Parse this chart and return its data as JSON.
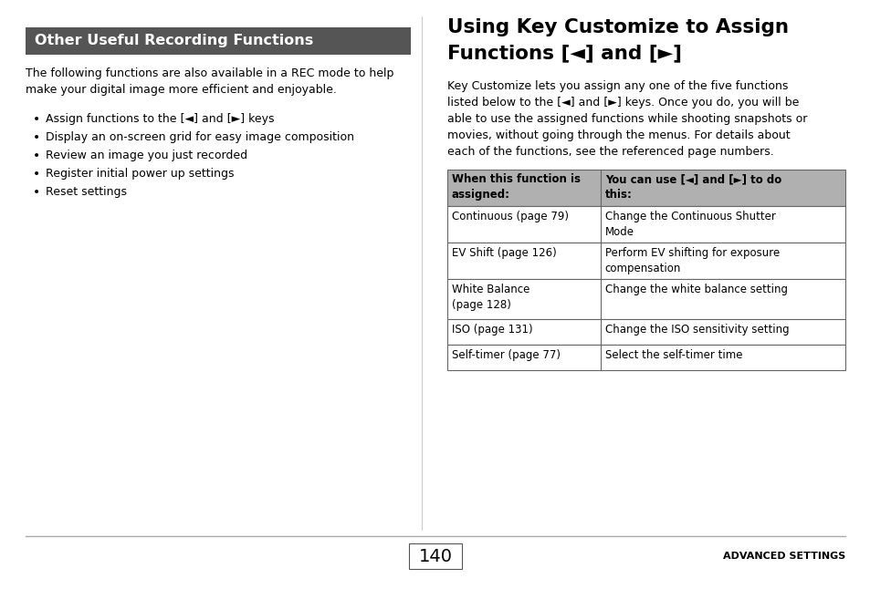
{
  "bg_color": "#ffffff",
  "left_section": {
    "header_bg": "#555555",
    "header_text": "Other Useful Recording Functions",
    "header_text_color": "#ffffff",
    "body_text": "The following functions are also available in a REC mode to help\nmake your digital image more efficient and enjoyable.",
    "bullets": [
      "Assign functions to the [◄] and [►] keys",
      "Display an on-screen grid for easy image composition",
      "Review an image you just recorded",
      "Register initial power up settings",
      "Reset settings"
    ]
  },
  "right_section": {
    "title_line1": "Using Key Customize to Assign",
    "title_line2": "Functions [◄] and [►]",
    "body_text": "Key Customize lets you assign any one of the five functions\nlisted below to the [◄] and [►] keys. Once you do, you will be\nable to use the assigned functions while shooting snapshots or\nmovies, without going through the menus. For details about\neach of the functions, see the referenced page numbers.",
    "table_header_bg": "#b0b0b0",
    "table_header_col1": "When this function is\nassigned:",
    "table_header_col2": "You can use [◄] and [►] to do\nthis:",
    "table_rows": [
      [
        "Continuous (page 79)",
        "Change the Continuous Shutter\nMode"
      ],
      [
        "EV Shift (page 126)",
        "Perform EV shifting for exposure\ncompensation"
      ],
      [
        "White Balance\n(page 128)",
        "Change the white balance setting"
      ],
      [
        "ISO (page 131)",
        "Change the ISO sensitivity setting"
      ],
      [
        "Self-timer (page 77)",
        "Select the self-timer time"
      ]
    ]
  },
  "footer": {
    "page_number": "140",
    "right_text": "ADVANCED SETTINGS"
  }
}
